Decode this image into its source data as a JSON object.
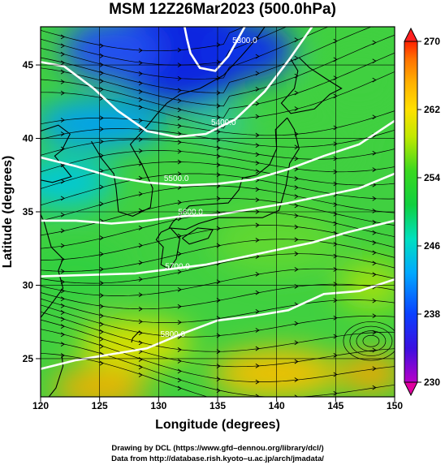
{
  "chart_data": {
    "type": "heatmap",
    "title": "MSM 12Z26Mar2023 (500.0hPa)",
    "xlabel": "Longitude (degrees)",
    "ylabel": "Latitude  (degrees)",
    "xlim": [
      120,
      150
    ],
    "ylim": [
      22.4,
      47.6
    ],
    "x_ticks": [
      120,
      125,
      130,
      135,
      140,
      145,
      150
    ],
    "y_ticks": [
      25,
      30,
      35,
      40,
      45
    ],
    "colorbar": {
      "min": 230,
      "max": 270,
      "ticks": [
        230,
        238,
        246,
        254,
        262,
        270
      ],
      "extend": "both"
    },
    "contours": [
      {
        "label": "5300.0",
        "points": [
          [
            132.2,
            47.6
          ],
          [
            132.4,
            46.8
          ],
          [
            132.7,
            45.8
          ],
          [
            133.5,
            44.8
          ],
          [
            134.8,
            44.6
          ],
          [
            135.9,
            45.6
          ],
          [
            136.6,
            46.6
          ],
          [
            137.3,
            47.6
          ]
        ]
      },
      {
        "label": "5400.0",
        "points": [
          [
            120,
            45.2
          ],
          [
            122,
            44.9
          ],
          [
            124.5,
            43.4
          ],
          [
            126.5,
            41.9
          ],
          [
            129,
            40.5
          ],
          [
            131.5,
            40.1
          ],
          [
            134,
            40.3
          ],
          [
            136.5,
            41.3
          ],
          [
            139,
            43.2
          ],
          [
            141,
            45.3
          ],
          [
            143,
            47.6
          ]
        ]
      },
      {
        "label": "5500.0",
        "points": [
          [
            120,
            38.7
          ],
          [
            123,
            38.1
          ],
          [
            126,
            37.4
          ],
          [
            129,
            37.0
          ],
          [
            132,
            36.8
          ],
          [
            135,
            36.9
          ],
          [
            138,
            37.2
          ],
          [
            141,
            37.9
          ],
          [
            144,
            38.8
          ],
          [
            147,
            39.6
          ],
          [
            150,
            41.2
          ]
        ]
      },
      {
        "label": "5600.0",
        "points": [
          [
            120,
            34.4
          ],
          [
            123,
            34.4
          ],
          [
            126,
            34.2
          ],
          [
            129,
            34.4
          ],
          [
            132,
            34.7
          ],
          [
            135,
            34.8
          ],
          [
            138,
            35.2
          ],
          [
            141,
            35.6
          ],
          [
            144,
            36.1
          ],
          [
            147,
            36.6
          ],
          [
            150,
            37.6
          ]
        ]
      },
      {
        "label": "5700.0",
        "points": [
          [
            120,
            30.6
          ],
          [
            124,
            30.7
          ],
          [
            128,
            30.8
          ],
          [
            131,
            31.1
          ],
          [
            134,
            31.4
          ],
          [
            137,
            31.9
          ],
          [
            140,
            32.4
          ],
          [
            143,
            32.9
          ],
          [
            146,
            33.6
          ],
          [
            150,
            34.4
          ]
        ]
      },
      {
        "label": "5800.0",
        "points": [
          [
            120,
            24.3
          ],
          [
            123,
            24.9
          ],
          [
            126,
            25.3
          ],
          [
            129,
            25.7
          ],
          [
            132,
            26.7
          ],
          [
            135,
            27.6
          ],
          [
            138,
            27.9
          ],
          [
            141,
            28.3
          ],
          [
            144,
            29.4
          ],
          [
            147,
            29.6
          ],
          [
            150,
            30.4
          ]
        ]
      }
    ],
    "contour_labels": [
      {
        "text": "5300.0",
        "lon": 137.3,
        "lat": 46.5
      },
      {
        "text": "5400.0",
        "lon": 135.5,
        "lat": 40.9
      },
      {
        "text": "5500.0",
        "lon": 131.5,
        "lat": 37.1
      },
      {
        "text": "5600.0",
        "lon": 132.7,
        "lat": 34.8
      },
      {
        "text": "5700.0",
        "lon": 131.6,
        "lat": 31.1
      },
      {
        "text": "5800.0",
        "lon": 131.2,
        "lat": 26.5
      }
    ]
  },
  "credits": {
    "line1": "Drawing by DCL (https://www.gfd–dennou.org/library/dcl/)",
    "line2": "Data from http://database.rish.kyoto–u.ac.jp/arch/jmadata/"
  },
  "colors": {
    "cold": "#1a2fd8",
    "warm": "#f4b000",
    "contour": "#ffffff",
    "streamline": "#000000"
  }
}
